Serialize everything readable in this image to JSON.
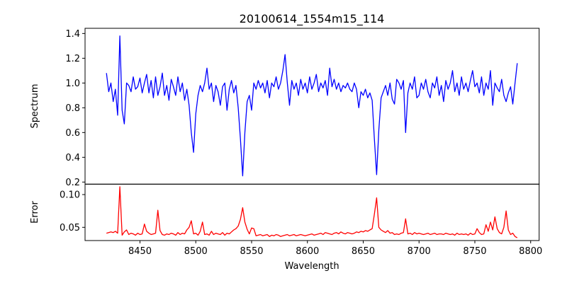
{
  "chart_data": [
    {
      "type": "line",
      "title": "20100614_1554m15_114",
      "ylabel": "Spectrum",
      "xlabel": "",
      "xlim": [
        8400.8,
        8807.6
      ],
      "ylim": [
        0.183,
        1.442
      ],
      "yticks": [
        "0.2",
        "0.4",
        "0.6",
        "0.8",
        "1.0",
        "1.2",
        "1.4"
      ],
      "grid": false,
      "series": [
        {
          "name": "Spectrum",
          "color": "#0000ff",
          "x0": 8420,
          "step": 2,
          "values": [
            1.08,
            0.93,
            1.0,
            0.85,
            0.95,
            0.74,
            1.38,
            0.78,
            0.67,
            1.0,
            0.98,
            0.93,
            1.05,
            0.95,
            0.97,
            1.04,
            0.92,
            1.0,
            1.07,
            0.92,
            1.02,
            0.88,
            1.05,
            0.9,
            0.97,
            1.08,
            0.9,
            0.98,
            0.86,
            1.03,
            0.97,
            0.9,
            1.05,
            0.93,
            1.0,
            0.86,
            0.95,
            0.82,
            0.6,
            0.44,
            0.75,
            0.9,
            0.98,
            0.93,
            1.0,
            1.12,
            0.95,
            1.0,
            0.85,
            0.98,
            0.93,
            0.82,
            0.97,
            1.0,
            0.78,
            0.95,
            1.02,
            0.92,
            0.98,
            0.8,
            0.55,
            0.25,
            0.6,
            0.85,
            0.9,
            0.78,
            1.0,
            0.95,
            1.02,
            0.96,
            1.0,
            0.92,
            1.02,
            0.88,
            1.0,
            0.97,
            1.05,
            0.95,
            1.0,
            1.1,
            1.23,
            1.0,
            0.82,
            1.02,
            0.95,
            1.0,
            0.9,
            1.03,
            0.95,
            1.0,
            0.92,
            1.05,
            0.95,
            1.0,
            1.07,
            0.93,
            1.0,
            0.96,
            1.02,
            0.9,
            1.12,
            0.97,
            1.03,
            0.95,
            1.0,
            0.93,
            0.98,
            0.96,
            1.0,
            0.95,
            0.93,
            1.0,
            0.95,
            0.8,
            0.93,
            0.9,
            0.95,
            0.88,
            0.92,
            0.86,
            0.55,
            0.26,
            0.62,
            0.88,
            0.93,
            0.98,
            0.9,
            1.0,
            0.87,
            0.83,
            1.03,
            1.0,
            0.95,
            1.02,
            0.6,
            0.92,
            1.0,
            0.95,
            1.05,
            0.88,
            0.9,
            1.0,
            0.95,
            1.03,
            0.93,
            0.88,
            1.0,
            0.96,
            1.05,
            0.9,
            0.98,
            0.85,
            1.02,
            0.95,
            1.0,
            1.1,
            0.93,
            1.0,
            0.9,
            1.05,
            0.95,
            1.0,
            0.93,
            1.02,
            1.1,
            0.97,
            1.0,
            0.92,
            1.05,
            0.9,
            1.0,
            0.95,
            1.1,
            0.82,
            1.0,
            0.96,
            0.93,
            1.03,
            0.9,
            0.85,
            0.92,
            0.97,
            0.83,
            1.0,
            1.16
          ]
        }
      ]
    },
    {
      "type": "line",
      "title": "",
      "ylabel": "Error",
      "xlabel": "Wavelength",
      "xlim": [
        8400.8,
        8807.6
      ],
      "ylim": [
        0.0298,
        0.1159
      ],
      "yticks": [
        "0.05",
        "0.10"
      ],
      "xticks": [
        "8450",
        "8500",
        "8550",
        "8600",
        "8650",
        "8700",
        "8750",
        "8800"
      ],
      "grid": false,
      "series": [
        {
          "name": "Error",
          "color": "#ff0000",
          "x0": 8420,
          "step": 2,
          "values": [
            0.041,
            0.042,
            0.043,
            0.042,
            0.044,
            0.041,
            0.112,
            0.038,
            0.043,
            0.046,
            0.039,
            0.041,
            0.04,
            0.038,
            0.041,
            0.039,
            0.04,
            0.055,
            0.044,
            0.041,
            0.039,
            0.04,
            0.041,
            0.076,
            0.045,
            0.039,
            0.038,
            0.04,
            0.039,
            0.041,
            0.04,
            0.038,
            0.042,
            0.039,
            0.041,
            0.04,
            0.046,
            0.05,
            0.06,
            0.04,
            0.041,
            0.038,
            0.044,
            0.058,
            0.039,
            0.04,
            0.038,
            0.044,
            0.039,
            0.041,
            0.04,
            0.039,
            0.042,
            0.038,
            0.041,
            0.04,
            0.043,
            0.046,
            0.048,
            0.052,
            0.062,
            0.08,
            0.058,
            0.047,
            0.04,
            0.049,
            0.048,
            0.037,
            0.038,
            0.039,
            0.037,
            0.038,
            0.039,
            0.036,
            0.038,
            0.037,
            0.039,
            0.038,
            0.036,
            0.037,
            0.038,
            0.039,
            0.037,
            0.038,
            0.039,
            0.037,
            0.038,
            0.039,
            0.038,
            0.037,
            0.038,
            0.039,
            0.04,
            0.038,
            0.039,
            0.04,
            0.041,
            0.039,
            0.042,
            0.041,
            0.04,
            0.039,
            0.041,
            0.042,
            0.04,
            0.043,
            0.041,
            0.04,
            0.042,
            0.041,
            0.04,
            0.041,
            0.043,
            0.042,
            0.044,
            0.043,
            0.045,
            0.044,
            0.046,
            0.048,
            0.07,
            0.095,
            0.05,
            0.046,
            0.044,
            0.042,
            0.045,
            0.041,
            0.042,
            0.039,
            0.04,
            0.039,
            0.041,
            0.042,
            0.063,
            0.04,
            0.041,
            0.039,
            0.042,
            0.04,
            0.041,
            0.04,
            0.039,
            0.04,
            0.041,
            0.039,
            0.04,
            0.041,
            0.039,
            0.04,
            0.04,
            0.039,
            0.041,
            0.04,
            0.039,
            0.04,
            0.038,
            0.041,
            0.039,
            0.04,
            0.039,
            0.04,
            0.038,
            0.041,
            0.039,
            0.04,
            0.048,
            0.042,
            0.039,
            0.04,
            0.054,
            0.044,
            0.058,
            0.046,
            0.066,
            0.048,
            0.042,
            0.04,
            0.05,
            0.075,
            0.046,
            0.039,
            0.041,
            0.036,
            0.034
          ]
        }
      ]
    }
  ]
}
